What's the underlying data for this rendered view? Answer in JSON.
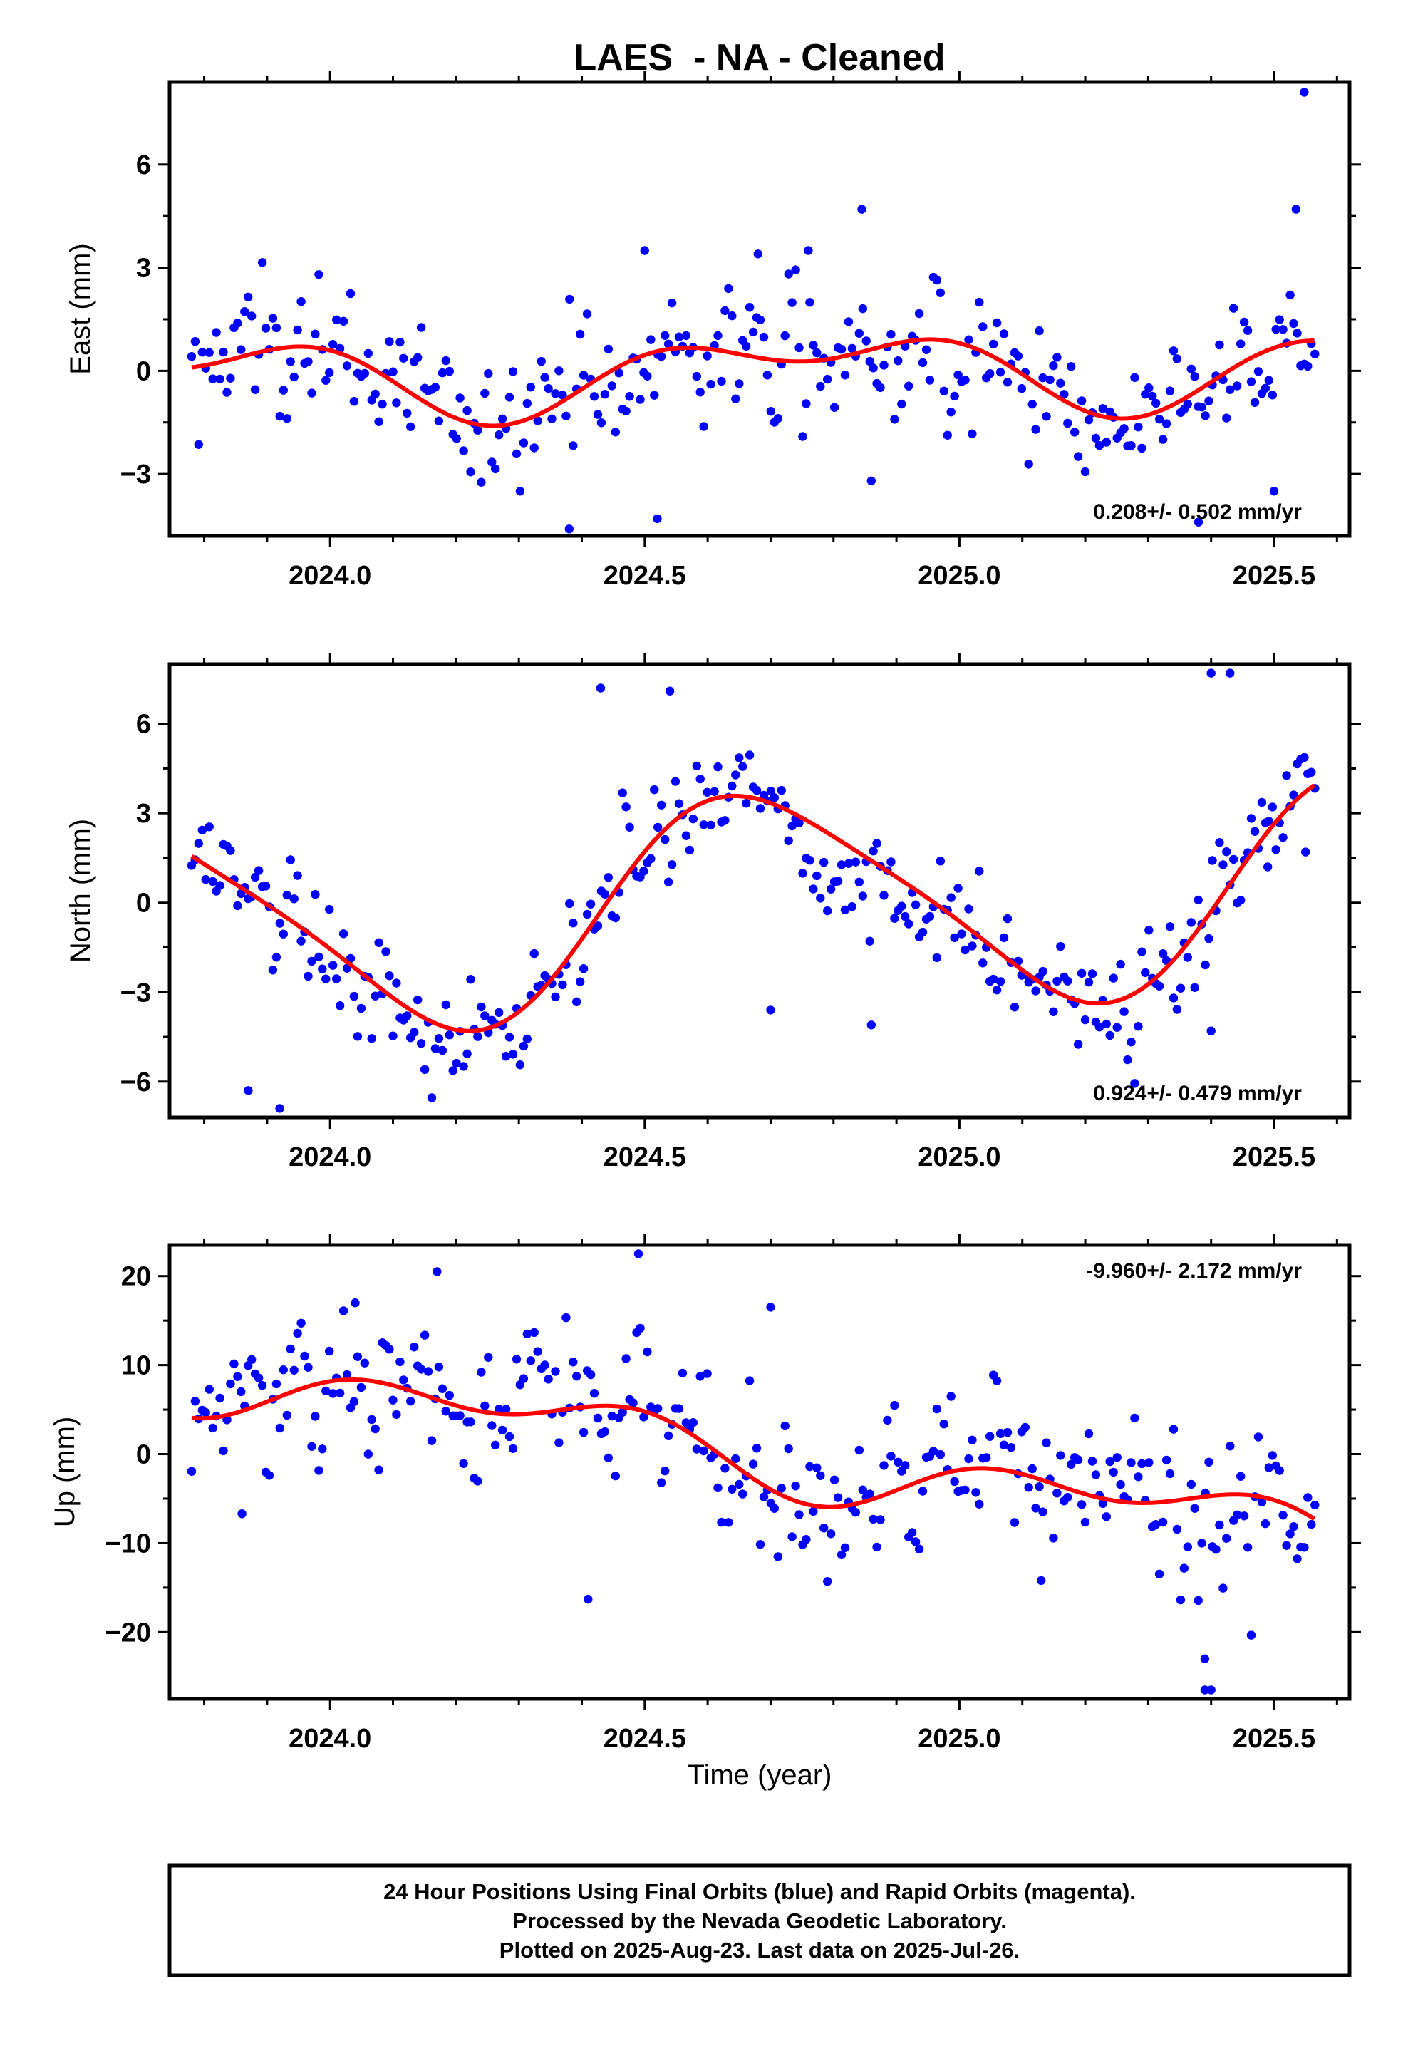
{
  "colors": {
    "points": "#0000ff",
    "trend": "#ff0000",
    "frame": "#000000",
    "background": "#ffffff"
  },
  "chart_data": {
    "type": "scatter",
    "title": "LAES  - NA - Cleaned",
    "xlabel": "Time (year)",
    "xlim": [
      2023.745,
      2025.62
    ],
    "x_ticks": [
      2024.0,
      2024.5,
      2025.0,
      2025.5
    ],
    "x_tick_labels": [
      "2024.0",
      "2024.5",
      "2025.0",
      "2025.5"
    ],
    "x_minor_step": 0.1,
    "x_start": 2023.78,
    "x_end": 2025.565,
    "panels": [
      {
        "name": "east",
        "ylabel": "East (mm)",
        "ylim": [
          -4.8,
          8.4
        ],
        "y_ticks": [
          6,
          3,
          0,
          -3
        ],
        "y_tick_labels": [
          "6",
          "3",
          "0",
          "−3"
        ],
        "rate_text": "0.208+/- 0.502 mm/yr",
        "rate_position": "bottom-right",
        "trend": {
          "rate": 0.208,
          "intercept_at_2024_7": 0.0,
          "harmonics": [
            {
              "period": 1.0,
              "cos": 0.12,
              "sin": -0.88
            },
            {
              "period": 0.5,
              "cos": 0.62,
              "sin": 0.05
            }
          ]
        },
        "scatter_sigma": 1.0,
        "outliers": [
          {
            "x": 2025.548,
            "y": 8.1
          },
          {
            "x": 2024.845,
            "y": 4.7
          },
          {
            "x": 2025.535,
            "y": 4.7
          },
          {
            "x": 2024.38,
            "y": -4.6
          },
          {
            "x": 2024.52,
            "y": -4.3
          },
          {
            "x": 2025.38,
            "y": -4.4
          },
          {
            "x": 2025.5,
            "y": -3.5
          },
          {
            "x": 2024.86,
            "y": -3.2
          },
          {
            "x": 2024.5,
            "y": 3.5
          },
          {
            "x": 2024.68,
            "y": 3.4
          },
          {
            "x": 2024.76,
            "y": 3.5
          }
        ]
      },
      {
        "name": "north",
        "ylabel": "North (mm)",
        "ylim": [
          -7.2,
          8.0
        ],
        "y_ticks": [
          6,
          3,
          0,
          -3,
          -6
        ],
        "y_tick_labels": [
          "6",
          "3",
          "0",
          "−3",
          "−6"
        ],
        "rate_text": "0.924+/- 0.479 mm/yr",
        "rate_position": "bottom-right",
        "trend": {
          "rate": 0.924,
          "intercept_at_2024_7": 0.0,
          "harmonics": [
            {
              "period": 1.0,
              "cos": -1.4,
              "sin": -3.3
            },
            {
              "period": 0.5,
              "cos": 0.5,
              "sin": 0.3
            }
          ]
        },
        "scatter_sigma": 0.95,
        "outliers": [
          {
            "x": 2023.92,
            "y": -6.9
          },
          {
            "x": 2023.87,
            "y": -6.3
          },
          {
            "x": 2024.43,
            "y": 7.2
          },
          {
            "x": 2024.54,
            "y": 7.1
          },
          {
            "x": 2025.4,
            "y": 7.7
          },
          {
            "x": 2025.43,
            "y": 7.7
          },
          {
            "x": 2024.7,
            "y": -3.6
          },
          {
            "x": 2024.86,
            "y": -4.1
          },
          {
            "x": 2025.49,
            "y": 1.2
          },
          {
            "x": 2025.55,
            "y": 1.7
          },
          {
            "x": 2025.4,
            "y": -4.3
          }
        ]
      },
      {
        "name": "up",
        "ylabel": "Up (mm)",
        "ylim": [
          -27.5,
          23.5
        ],
        "y_ticks": [
          20,
          10,
          0,
          -10,
          -20
        ],
        "y_tick_labels": [
          "20",
          "10",
          "0",
          "−10",
          "−20"
        ],
        "rate_text": "-9.960+/- 2.172 mm/yr",
        "rate_position": "top-right",
        "trend": {
          "rate": -9.96,
          "intercept_at_2024_7": -0.2,
          "harmonics": [
            {
              "period": 1.0,
              "cos": -0.8,
              "sin": 2.6
            },
            {
              "period": 0.5,
              "cos": 2.2,
              "sin": 0.4
            }
          ]
        },
        "scatter_sigma": 4.0,
        "outliers": [
          {
            "x": 2024.49,
            "y": 22.5
          },
          {
            "x": 2024.17,
            "y": 20.5
          },
          {
            "x": 2024.7,
            "y": 16.5
          },
          {
            "x": 2024.41,
            "y": -16.3
          },
          {
            "x": 2025.39,
            "y": -26.5
          },
          {
            "x": 2025.4,
            "y": -26.5
          },
          {
            "x": 2025.39,
            "y": -23.0
          },
          {
            "x": 2025.13,
            "y": -14.2
          },
          {
            "x": 2023.86,
            "y": -6.7
          },
          {
            "x": 2024.04,
            "y": 17.0
          }
        ]
      }
    ],
    "footer": [
      "24 Hour Positions Using Final Orbits (blue) and Rapid Orbits (magenta).",
      "Processed by the Nevada Geodetic Laboratory.",
      "Plotted on 2025-Aug-23. Last data on 2025-Jul-26."
    ]
  }
}
